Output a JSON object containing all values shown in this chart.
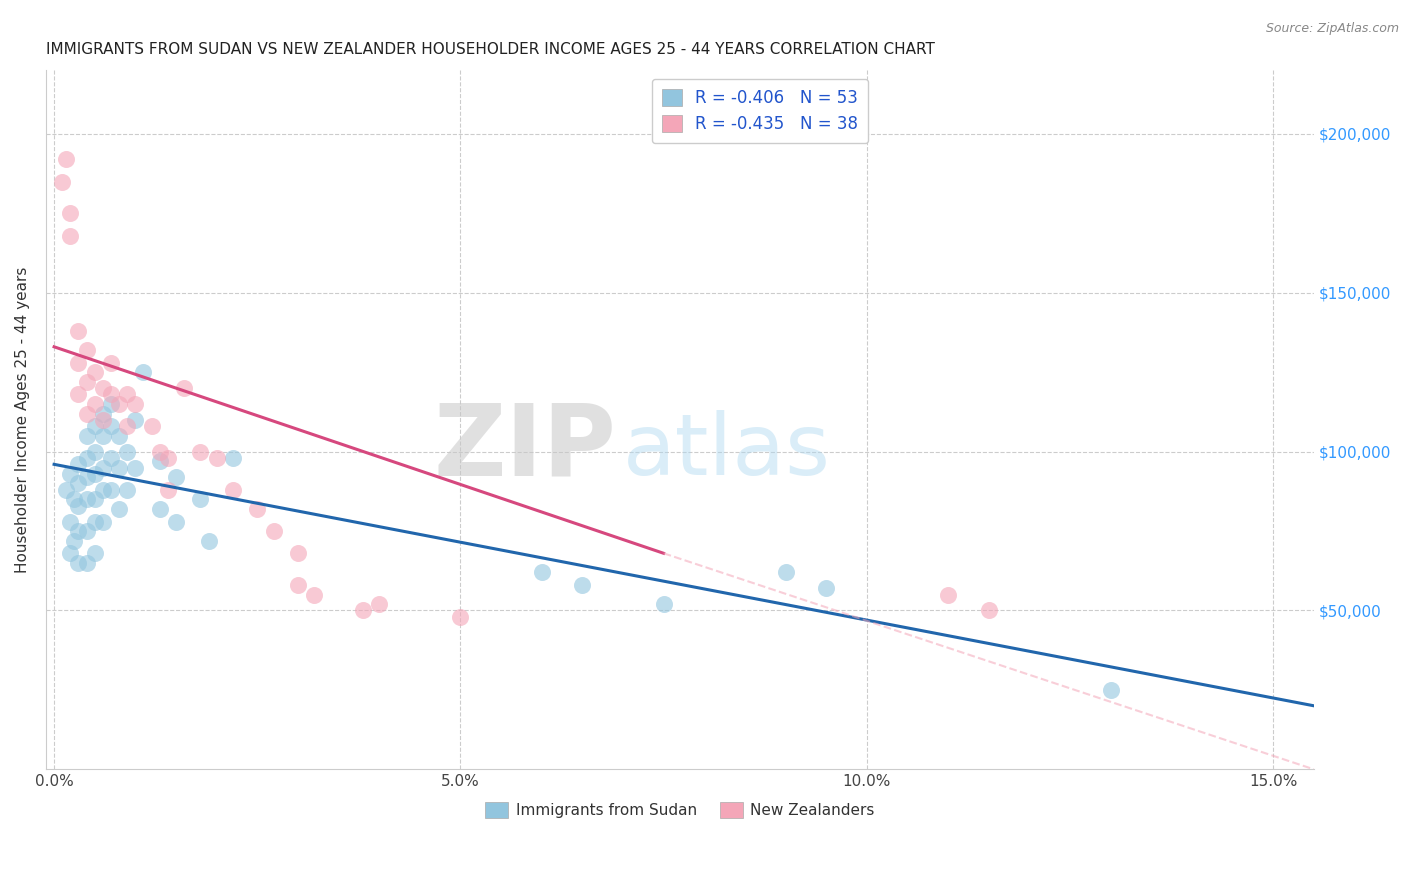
{
  "title": "IMMIGRANTS FROM SUDAN VS NEW ZEALANDER HOUSEHOLDER INCOME AGES 25 - 44 YEARS CORRELATION CHART",
  "source": "Source: ZipAtlas.com",
  "xlabel_ticks": [
    "0.0%",
    "5.0%",
    "10.0%",
    "15.0%"
  ],
  "xlabel_tick_vals": [
    0.0,
    0.05,
    0.1,
    0.15
  ],
  "ylabel_right_ticks": [
    "$50,000",
    "$100,000",
    "$150,000",
    "$200,000"
  ],
  "ylabel_right_tick_vals": [
    50000,
    100000,
    150000,
    200000
  ],
  "xlim": [
    -0.001,
    0.155
  ],
  "ylim": [
    0,
    220000
  ],
  "legend_blue_label": "R = -0.406   N = 53",
  "legend_pink_label": "R = -0.435   N = 38",
  "blue_color": "#92c5de",
  "pink_color": "#f4a6b8",
  "blue_line_color": "#2166ac",
  "pink_line_color": "#d6487e",
  "watermark_zip": "ZIP",
  "watermark_atlas": "atlas",
  "ylabel": "Householder Income Ages 25 - 44 years",
  "blue_scatter_x": [
    0.0015,
    0.002,
    0.002,
    0.002,
    0.0025,
    0.0025,
    0.003,
    0.003,
    0.003,
    0.003,
    0.003,
    0.004,
    0.004,
    0.004,
    0.004,
    0.004,
    0.004,
    0.005,
    0.005,
    0.005,
    0.005,
    0.005,
    0.005,
    0.006,
    0.006,
    0.006,
    0.006,
    0.006,
    0.007,
    0.007,
    0.007,
    0.007,
    0.008,
    0.008,
    0.008,
    0.009,
    0.009,
    0.01,
    0.01,
    0.011,
    0.013,
    0.013,
    0.015,
    0.015,
    0.018,
    0.019,
    0.022,
    0.06,
    0.065,
    0.075,
    0.09,
    0.095,
    0.13
  ],
  "blue_scatter_y": [
    88000,
    93000,
    78000,
    68000,
    85000,
    72000,
    96000,
    90000,
    83000,
    75000,
    65000,
    105000,
    98000,
    92000,
    85000,
    75000,
    65000,
    108000,
    100000,
    93000,
    85000,
    78000,
    68000,
    112000,
    105000,
    95000,
    88000,
    78000,
    115000,
    108000,
    98000,
    88000,
    105000,
    95000,
    82000,
    100000,
    88000,
    110000,
    95000,
    125000,
    97000,
    82000,
    92000,
    78000,
    85000,
    72000,
    98000,
    62000,
    58000,
    52000,
    62000,
    57000,
    25000
  ],
  "pink_scatter_x": [
    0.001,
    0.0015,
    0.002,
    0.002,
    0.003,
    0.003,
    0.003,
    0.004,
    0.004,
    0.004,
    0.005,
    0.005,
    0.006,
    0.006,
    0.007,
    0.007,
    0.008,
    0.009,
    0.009,
    0.01,
    0.012,
    0.013,
    0.014,
    0.014,
    0.016,
    0.018,
    0.02,
    0.022,
    0.025,
    0.027,
    0.03,
    0.03,
    0.032,
    0.038,
    0.04,
    0.05,
    0.11,
    0.115
  ],
  "pink_scatter_y": [
    185000,
    192000,
    175000,
    168000,
    138000,
    128000,
    118000,
    132000,
    122000,
    112000,
    125000,
    115000,
    120000,
    110000,
    128000,
    118000,
    115000,
    118000,
    108000,
    115000,
    108000,
    100000,
    98000,
    88000,
    120000,
    100000,
    98000,
    88000,
    82000,
    75000,
    68000,
    58000,
    55000,
    50000,
    52000,
    48000,
    55000,
    50000
  ],
  "blue_trend_x": [
    0.0,
    0.155
  ],
  "blue_trend_y": [
    96000,
    20000
  ],
  "pink_trend_x": [
    0.0,
    0.075
  ],
  "pink_trend_y": [
    133000,
    68000
  ],
  "dashed_trend_x": [
    0.075,
    0.155
  ],
  "dashed_trend_y": [
    68000,
    0
  ]
}
